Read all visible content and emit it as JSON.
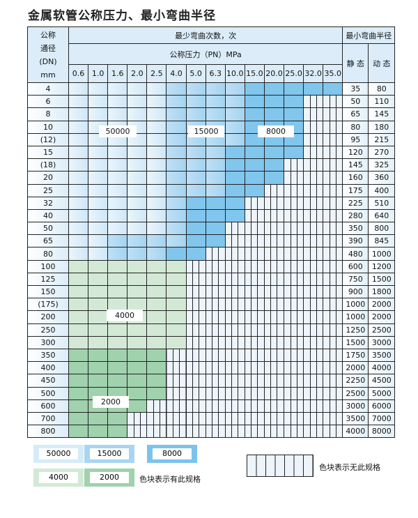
{
  "title": "金属软管公称压力、最小弯曲半径",
  "header": {
    "dn_label": [
      "公称",
      "通径",
      "(DN)",
      "mm"
    ],
    "cycles_label": "最少弯曲次数，次",
    "pressure_label": "公称压力（PN）MPa",
    "radius_label": "最小弯曲半径",
    "static_label": "静 态",
    "dynamic_label": "动 态",
    "pressures": [
      "0.6",
      "1.0",
      "1.6",
      "2.0",
      "2.5",
      "4.0",
      "5.0",
      "6.3",
      "10.0",
      "15.0",
      "20.0",
      "25.0",
      "32.0",
      "35.0"
    ]
  },
  "tier_values": {
    "1": "50000",
    "2": "15000",
    "3": "8000",
    "4": "4000",
    "5": "2000"
  },
  "rows": [
    {
      "dn": "4",
      "tiers": "11111222233333",
      "static": "35",
      "dynamic": "80"
    },
    {
      "dn": "6",
      "tiers": "111112222333",
      "static": "50",
      "dynamic": "110"
    },
    {
      "dn": "8",
      "tiers": "111112222333",
      "static": "65",
      "dynamic": "145"
    },
    {
      "dn": "10",
      "tiers": "111112222333",
      "static": "80",
      "dynamic": "180"
    },
    {
      "dn": "(12)",
      "tiers": "111112222333",
      "static": "95",
      "dynamic": "215"
    },
    {
      "dn": "15",
      "tiers": "111112223333",
      "static": "120",
      "dynamic": "270"
    },
    {
      "dn": "(18)",
      "tiers": "11111222333",
      "static": "145",
      "dynamic": "325"
    },
    {
      "dn": "20",
      "tiers": "11111222333",
      "static": "160",
      "dynamic": "360"
    },
    {
      "dn": "25",
      "tiers": "1111122233",
      "static": "175",
      "dynamic": "400"
    },
    {
      "dn": "32",
      "tiers": "111112333",
      "static": "225",
      "dynamic": "510"
    },
    {
      "dn": "40",
      "tiers": "111112333",
      "static": "280",
      "dynamic": "640"
    },
    {
      "dn": "50",
      "tiers": "11111233",
      "static": "350",
      "dynamic": "800"
    },
    {
      "dn": "65",
      "tiers": "11222233",
      "static": "390",
      "dynamic": "845"
    },
    {
      "dn": "80",
      "tiers": "1122233",
      "static": "480",
      "dynamic": "1000"
    },
    {
      "dn": "100",
      "tiers": "444444",
      "static": "600",
      "dynamic": "1200"
    },
    {
      "dn": "125",
      "tiers": "444444",
      "static": "750",
      "dynamic": "1500"
    },
    {
      "dn": "150",
      "tiers": "444444",
      "static": "900",
      "dynamic": "1800"
    },
    {
      "dn": "(175)",
      "tiers": "444444",
      "static": "1000",
      "dynamic": "2000"
    },
    {
      "dn": "200",
      "tiers": "444444",
      "static": "1000",
      "dynamic": "2000"
    },
    {
      "dn": "250",
      "tiers": "444444",
      "static": "1250",
      "dynamic": "2500"
    },
    {
      "dn": "300",
      "tiers": "444444",
      "static": "1500",
      "dynamic": "3000"
    },
    {
      "dn": "350",
      "tiers": "55555",
      "static": "1750",
      "dynamic": "3500"
    },
    {
      "dn": "400",
      "tiers": "55555",
      "static": "2000",
      "dynamic": "4000"
    },
    {
      "dn": "450",
      "tiers": "55555",
      "static": "2250",
      "dynamic": "4500"
    },
    {
      "dn": "500",
      "tiers": "55555",
      "static": "2500",
      "dynamic": "5000"
    },
    {
      "dn": "600",
      "tiers": "5555",
      "static": "3000",
      "dynamic": "6000"
    },
    {
      "dn": "700",
      "tiers": "555",
      "static": "3500",
      "dynamic": "7000"
    },
    {
      "dn": "800",
      "tiers": "555",
      "static": "4000",
      "dynamic": "8000"
    }
  ],
  "region_labels": {
    "a": "50000",
    "b": "15000",
    "c": "8000",
    "d": "4000",
    "e": "2000"
  },
  "legend": {
    "items": [
      "50000",
      "15000",
      "8000",
      "4000",
      "2000"
    ],
    "has_spec_note": "色块表示有此规格",
    "no_spec_note": "色块表示无此规格"
  },
  "colors": {
    "t1": "#cfe7f7",
    "t2": "#a4d4f1",
    "t3": "#80c6ed",
    "t4": "#d3e9d6",
    "t5": "#9fd2ad",
    "empty": "#eef4fb"
  }
}
